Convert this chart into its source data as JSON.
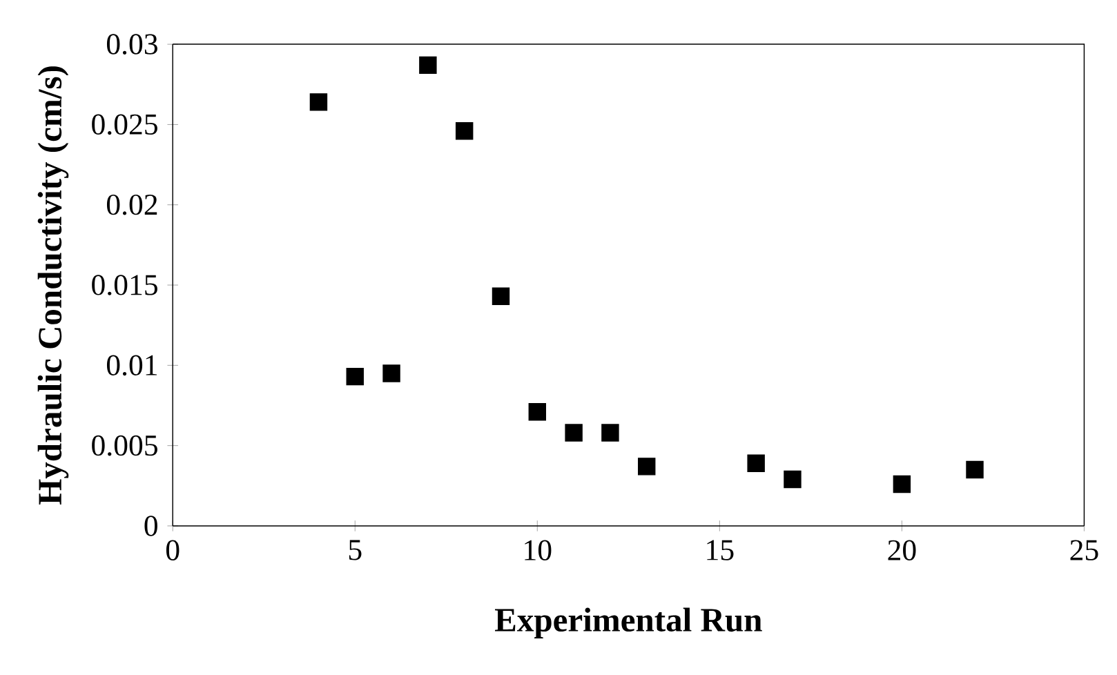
{
  "chart_data": {
    "type": "scatter",
    "xlabel": "Experimental Run",
    "ylabel": "Hydraulic Conductivity (cm/s)",
    "x": [
      4,
      5,
      6,
      7,
      8,
      9,
      10,
      11,
      12,
      13,
      16,
      17,
      20,
      22
    ],
    "values": [
      0.0264,
      0.0093,
      0.0095,
      0.0287,
      0.0246,
      0.0143,
      0.0071,
      0.0058,
      0.0058,
      0.0037,
      0.0039,
      0.0029,
      0.0026,
      0.0035
    ],
    "color": "#000000",
    "marker": "square",
    "xlim": [
      0,
      25
    ],
    "xticks": [
      0,
      5,
      10,
      15,
      20,
      25
    ],
    "ylim": [
      0,
      0.03
    ],
    "yticks": [
      0,
      0.005,
      0.01,
      0.015,
      0.02,
      0.025,
      0.03
    ],
    "grid": false,
    "legend": false
  }
}
